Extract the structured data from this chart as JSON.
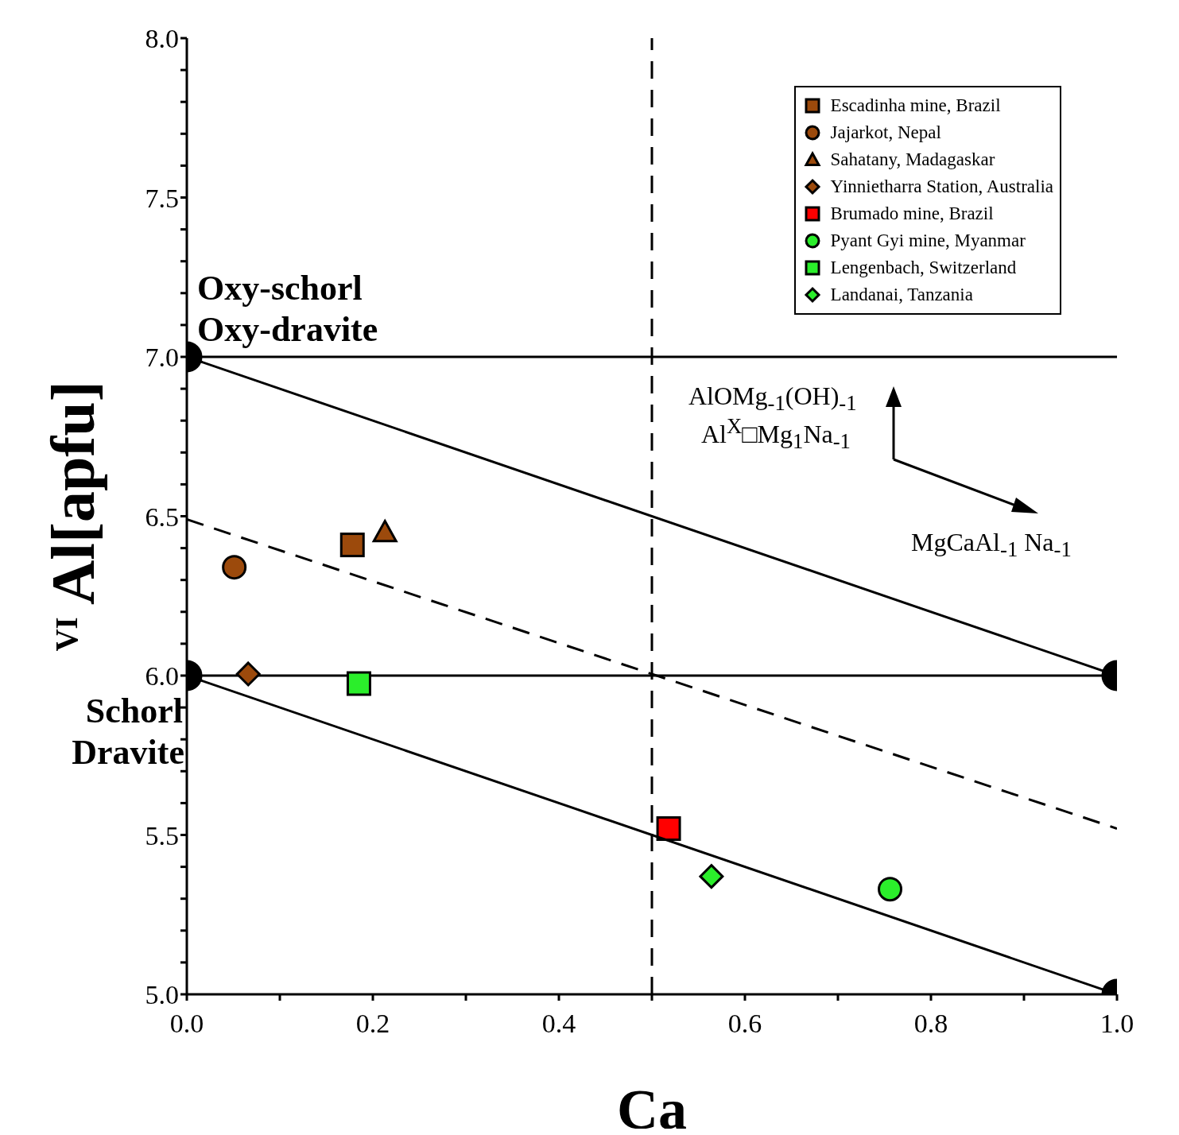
{
  "chart_data": {
    "type": "scatter",
    "xlabel": "Ca",
    "ylabel": "$^{VI}$Al[apfu]",
    "xlim": [
      0,
      1
    ],
    "ylim": [
      5,
      8
    ],
    "xticks": [
      {
        "value": 0,
        "label": "0.0"
      },
      {
        "value": 0.1,
        "label": null
      },
      {
        "value": 0.2,
        "label": "0.2"
      },
      {
        "value": 0.3,
        "label": null
      },
      {
        "value": 0.4,
        "label": "0.4"
      },
      {
        "value": 0.5,
        "label": null
      },
      {
        "value": 0.6,
        "label": "0.6"
      },
      {
        "value": 0.7,
        "label": null
      },
      {
        "value": 0.8,
        "label": "0.8"
      },
      {
        "value": 0.9,
        "label": null
      },
      {
        "value": 1,
        "label": "1.0"
      }
    ],
    "yticks": [
      {
        "value": 5,
        "label": "5.0"
      },
      {
        "value": 5.1,
        "label": null
      },
      {
        "value": 5.2,
        "label": null
      },
      {
        "value": 5.3,
        "label": null
      },
      {
        "value": 5.4,
        "label": null
      },
      {
        "value": 5.5,
        "label": "5.5"
      },
      {
        "value": 5.6,
        "label": null
      },
      {
        "value": 5.7,
        "label": null
      },
      {
        "value": 5.8,
        "label": null
      },
      {
        "value": 5.9,
        "label": null
      },
      {
        "value": 6,
        "label": "6.0"
      },
      {
        "value": 6.1,
        "label": null
      },
      {
        "value": 6.2,
        "label": null
      },
      {
        "value": 6.3,
        "label": null
      },
      {
        "value": 6.4,
        "label": null
      },
      {
        "value": 6.5,
        "label": "6.5"
      },
      {
        "value": 6.6,
        "label": null
      },
      {
        "value": 6.7,
        "label": null
      },
      {
        "value": 6.8,
        "label": null
      },
      {
        "value": 6.9,
        "label": null
      },
      {
        "value": 7,
        "label": "7.0"
      },
      {
        "value": 7.1,
        "label": null
      },
      {
        "value": 7.2,
        "label": null
      },
      {
        "value": 7.3,
        "label": null
      },
      {
        "value": 7.4,
        "label": null
      },
      {
        "value": 7.5,
        "label": "7.5"
      },
      {
        "value": 7.6,
        "label": null
      },
      {
        "value": 7.7,
        "label": null
      },
      {
        "value": 7.8,
        "label": null
      },
      {
        "value": 7.9,
        "label": null
      },
      {
        "value": 8,
        "label": "8.0"
      }
    ],
    "grid": false,
    "legend": "top right",
    "ref_lines": [
      {
        "axis": "y",
        "value": 7,
        "color": "#000000",
        "line_style": "solid"
      },
      {
        "axis": "y",
        "value": 6,
        "color": "#000000",
        "line_style": "solid"
      },
      {
        "axis": "x",
        "value": 0.5,
        "color": "#000000",
        "line_style": "dashed"
      }
    ],
    "series": [
      {
        "name": "Escadinha mine, Brazil",
        "color": "#9c4a0c",
        "marker": "square",
        "x": [
          0.178
        ],
        "values": [
          6.41
        ]
      },
      {
        "name": "Jajarkot, Nepal",
        "color": "#9c4a0c",
        "marker": "circle",
        "x": [
          0.051
        ],
        "values": [
          6.34
        ]
      },
      {
        "name": "Sahatany, Madagaskar",
        "color": "#9c4a0c",
        "marker": "triangle",
        "x": [
          0.213
        ],
        "values": [
          6.45
        ]
      },
      {
        "name": "Yinnietharra Station, Australia",
        "color": "#9c4a0c",
        "marker": "diamond",
        "x": [
          0.066
        ],
        "values": [
          6.005
        ]
      },
      {
        "name": "Brumado mine, Brazil",
        "color": "#ff0000",
        "marker": "square",
        "x": [
          0.518
        ],
        "values": [
          5.52
        ]
      },
      {
        "name": "Pyant Gyi mine, Myanmar",
        "color": "#2bee2b",
        "marker": "circle",
        "x": [
          0.756
        ],
        "values": [
          5.33
        ]
      },
      {
        "name": "Lengenbach, Switzerland",
        "color": "#2bee2b",
        "marker": "square",
        "x": [
          0.185
        ],
        "values": [
          5.975
        ]
      },
      {
        "name": "Landanai, Tanzania",
        "color": "#2bee2b",
        "marker": "diamond",
        "x": [
          0.564
        ],
        "values": [
          5.37
        ]
      },
      {
        "type": "line",
        "color": "#000000",
        "line_style": "solid",
        "x": [
          0,
          1
        ],
        "values": [
          7,
          6
        ]
      },
      {
        "type": "line",
        "color": "#000000",
        "line_style": "solid",
        "x": [
          0,
          1
        ],
        "values": [
          6,
          5
        ]
      },
      {
        "type": "line",
        "color": "#000000",
        "line_style": "dashed",
        "x": [
          0,
          1
        ],
        "values": [
          6.49,
          5.52
        ]
      },
      {
        "type": "scatter",
        "color": "#000000",
        "marker": "circle",
        "x": [
          0,
          0,
          1,
          1
        ],
        "values": [
          7,
          6,
          6,
          5
        ]
      }
    ],
    "annotations": [
      "Oxy-schorl",
      "Oxy-dravite",
      "Schorl",
      "Dravite",
      "AlOMg$_{-1}$(OH)$_{-1}$",
      "Al$^{X}$□Mg$_{1}$Na$_{-1}$",
      "MgCaAl$_{-1}$ Na$_{-1}$"
    ]
  }
}
